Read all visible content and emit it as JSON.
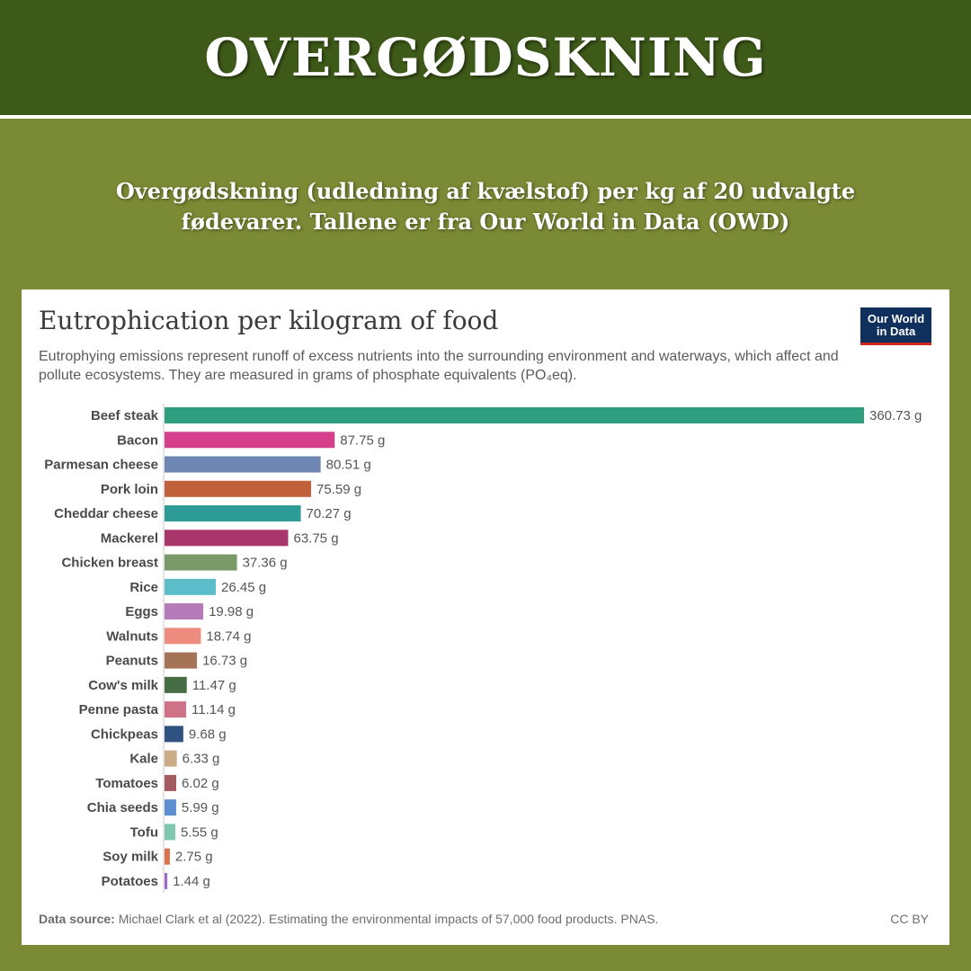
{
  "banner": {
    "title": "OVERGØDSKNING",
    "subtitle": "Overgødskning (udledning af kvælstof) per kg af 20 udvalgte fødevarer. Tallene er fra Our World in Data (OWD)"
  },
  "card": {
    "logo_line1": "Our World",
    "logo_line2": "in Data",
    "source_label": "Data source:",
    "source_text": "Michael Clark et al (2022). Estimating the environmental impacts of 57,000 food products. PNAS.",
    "license": "CC BY"
  },
  "colors": {
    "header_bg": "#3e5a19",
    "page_bg": "#7b8a35",
    "logo_bg": "#0f2f5c",
    "logo_accent": "#ce261e"
  },
  "chart_data": {
    "type": "bar",
    "orientation": "horizontal",
    "title": "Eutrophication per kilogram of food",
    "subtitle": "Eutrophying emissions represent runoff of excess nutrients into the surrounding environment and waterways, which affect and pollute ecosystems. They are measured in grams of phosphate equivalents (PO₄eq).",
    "unit": "g",
    "categories": [
      "Beef steak",
      "Bacon",
      "Parmesan cheese",
      "Pork loin",
      "Cheddar cheese",
      "Mackerel",
      "Chicken breast",
      "Rice",
      "Eggs",
      "Walnuts",
      "Peanuts",
      "Cow's milk",
      "Penne pasta",
      "Chickpeas",
      "Kale",
      "Tomatoes",
      "Chia seeds",
      "Tofu",
      "Soy milk",
      "Potatoes"
    ],
    "values": [
      360.73,
      87.75,
      80.51,
      75.59,
      70.27,
      63.75,
      37.36,
      26.45,
      19.98,
      18.74,
      16.73,
      11.47,
      11.14,
      9.68,
      6.33,
      6.02,
      5.99,
      5.55,
      2.75,
      1.44
    ],
    "value_labels": [
      "360.73 g",
      "87.75 g",
      "80.51 g",
      "75.59 g",
      "70.27 g",
      "63.75 g",
      "37.36 g",
      "26.45 g",
      "19.98 g",
      "18.74 g",
      "16.73 g",
      "11.47 g",
      "11.14 g",
      "9.68 g",
      "6.33 g",
      "6.02 g",
      "5.99 g",
      "5.55 g",
      "2.75 g",
      "1.44 g"
    ],
    "colors": [
      "#2f9e7f",
      "#d63f8c",
      "#6d86b3",
      "#c1613b",
      "#2e9c96",
      "#a9366a",
      "#7a9a6a",
      "#5cbcc9",
      "#b57ab8",
      "#ec8b7e",
      "#a57355",
      "#456e45",
      "#d07287",
      "#2f5280",
      "#ccab87",
      "#a25b5f",
      "#5d8fd0",
      "#7ec9ad",
      "#d9734a",
      "#9b6bc0"
    ],
    "xlim": [
      0,
      360.73
    ],
    "grid": false,
    "legend": "none"
  }
}
